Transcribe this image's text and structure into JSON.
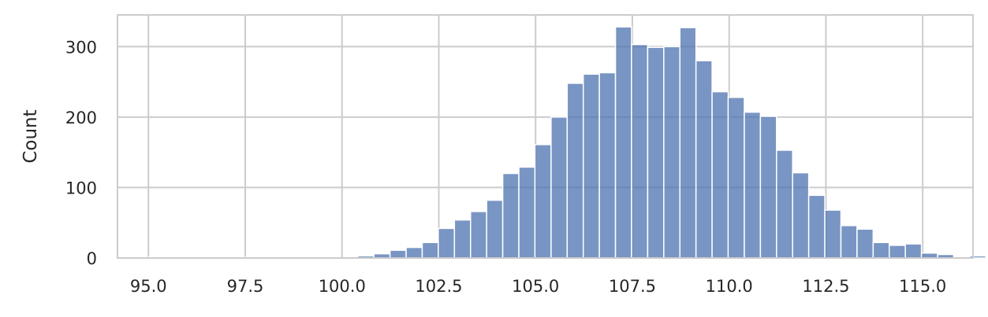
{
  "chart_data": {
    "type": "bar",
    "title": "",
    "xlabel": "",
    "ylabel": "Count",
    "xlim": [
      94.2,
      116.3
    ],
    "ylim": [
      0,
      345
    ],
    "xticks": [
      95.0,
      97.5,
      100.0,
      102.5,
      105.0,
      107.5,
      110.0,
      112.5,
      115.0
    ],
    "xtick_labels": [
      "95.0",
      "97.5",
      "100.0",
      "102.5",
      "105.0",
      "107.5",
      "110.0",
      "112.5",
      "115.0"
    ],
    "yticks": [
      0,
      100,
      200,
      300
    ],
    "ytick_labels": [
      "0",
      "100",
      "200",
      "300"
    ],
    "grid": true,
    "bin_width": 0.416,
    "bin_start": 95.0,
    "values": [
      1,
      1,
      1,
      1,
      1,
      1,
      1,
      0,
      0,
      0,
      0,
      0,
      0,
      3,
      6,
      11,
      15,
      22,
      42,
      54,
      66,
      82,
      120,
      129,
      161,
      200,
      248,
      261,
      263,
      328,
      303,
      299,
      300,
      327,
      280,
      236,
      228,
      207,
      201,
      153,
      121,
      89,
      68,
      46,
      41,
      22,
      18,
      20,
      7,
      5,
      0,
      3,
      0,
      1
    ],
    "bar_color": "#4c72b0",
    "grid_color": "#cccccc"
  }
}
